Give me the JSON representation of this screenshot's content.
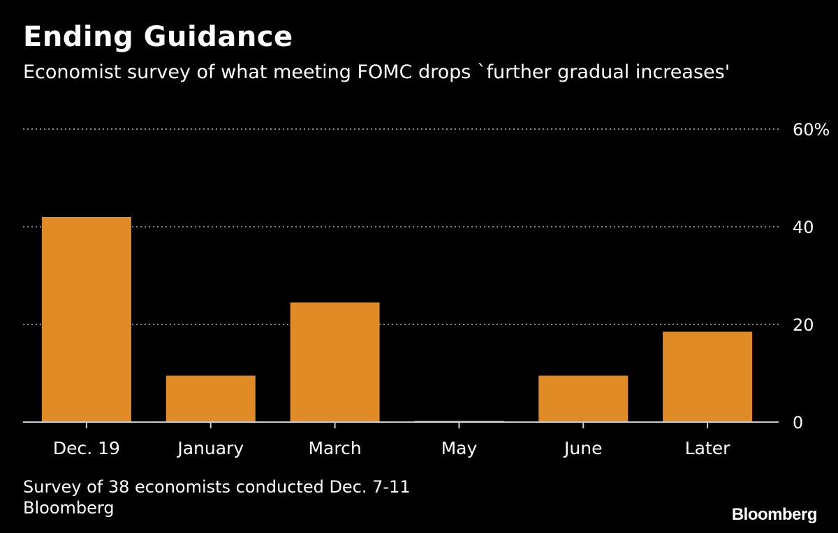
{
  "header": {
    "title": "Ending Guidance",
    "subtitle": "Economist survey of what meeting FOMC drops `further gradual increases'"
  },
  "footer": {
    "note": "Survey of 38 economists conducted Dec. 7-11",
    "source": "Bloomberg",
    "logo": "Bloomberg"
  },
  "colors": {
    "bar": "#e08b25",
    "grid": "#8a8a8a",
    "axis": "#cccccc",
    "text": "#ffffff"
  },
  "chart_data": {
    "type": "bar",
    "title": "Ending Guidance",
    "subtitle": "Economist survey of what meeting FOMC drops `further gradual increases'",
    "categories": [
      "Dec. 19",
      "January",
      "March",
      "May",
      "June",
      "Later"
    ],
    "values": [
      42,
      9.5,
      24.5,
      0,
      9.5,
      18.5
    ],
    "ylim": [
      0,
      60
    ],
    "yticks": [
      0,
      20,
      40,
      60
    ],
    "ytick_labels": [
      "0",
      "20",
      "40",
      "60%"
    ],
    "xlabel": "",
    "ylabel": "",
    "grid": true,
    "y_axis_side": "right"
  }
}
